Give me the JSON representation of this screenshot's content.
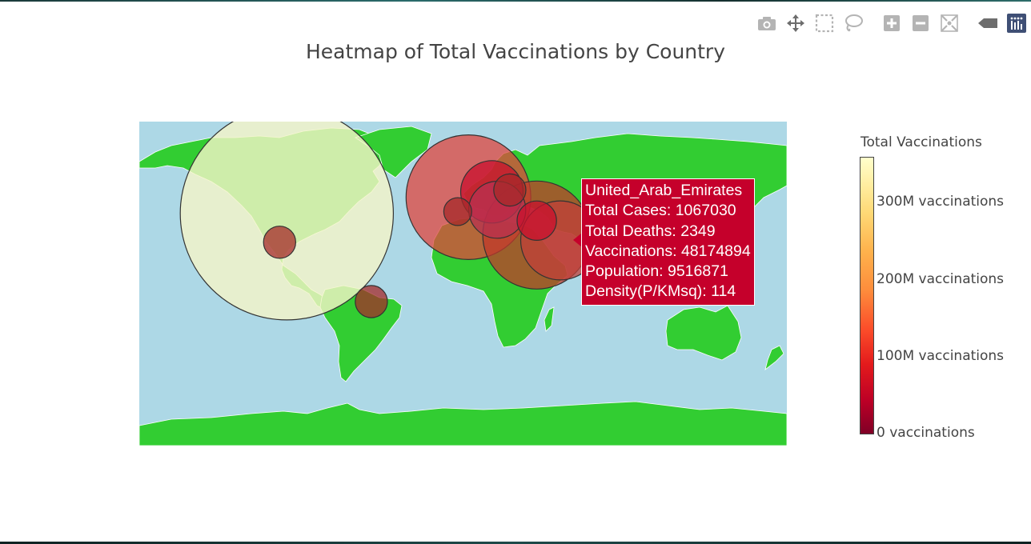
{
  "toolbar": {
    "icons": [
      "camera-icon",
      "pan-icon",
      "box-select-icon",
      "lasso-icon",
      "zoom-in-icon",
      "zoom-out-icon",
      "reset-icon",
      "hover-icon",
      "plotly-logo-icon"
    ]
  },
  "chart_data": {
    "type": "scatter",
    "subtype": "scatter_geo_bubble",
    "title": "Heatmap of Total Vaccinations by Country",
    "projection": "equirectangular",
    "land_color": "#32cd32",
    "ocean_color": "#add8e6",
    "colorbar": {
      "title": "Total Vaccinations",
      "range": [
        0,
        360000000
      ],
      "colorscale": [
        "#800026",
        "#bd0026",
        "#e31a1c",
        "#fc4e2a",
        "#fd8d3c",
        "#feb24c",
        "#fed976",
        "#ffeda0",
        "#ffffcc"
      ],
      "ticks": [
        {
          "value": 0,
          "label": "0 vaccinations"
        },
        {
          "value": 100000000,
          "label": "100M vaccinations"
        },
        {
          "value": 200000000,
          "label": "200M vaccinations"
        },
        {
          "value": 300000000,
          "label": "300M vaccinations"
        }
      ]
    },
    "points": [
      {
        "lon": -98,
        "lat": 39,
        "vaccinations": 350000000,
        "color": "#f5f5c8"
      },
      {
        "lon": -102,
        "lat": 23,
        "vaccinations": 8000000,
        "color": "#a52a2a"
      },
      {
        "lon": -51,
        "lat": -10,
        "vaccinations": 8000000,
        "color": "#a52a2a"
      },
      {
        "lon": -3,
        "lat": 40,
        "vaccinations": 6000000,
        "color": "#a52a2a"
      },
      {
        "lon": 3,
        "lat": 48,
        "vaccinations": 120000000,
        "color": "#e0463e"
      },
      {
        "lon": 16,
        "lat": 51,
        "vaccinations": 30000000,
        "color": "#c8102e"
      },
      {
        "lon": 26,
        "lat": 52,
        "vaccinations": 8000000,
        "color": "#a52a2a"
      },
      {
        "lon": 19,
        "lat": 41,
        "vaccinations": 25000000,
        "color": "#b83250"
      },
      {
        "lon": 41,
        "lat": 35,
        "vaccinations": 12000000,
        "color": "#c8102e"
      },
      {
        "lon": 41,
        "lat": 27,
        "vaccinations": 90000000,
        "color": "#c0392b"
      },
      {
        "lon": 54,
        "lat": 24,
        "vaccinations": 48174894,
        "color": "#c0403a"
      }
    ],
    "hover": {
      "country": "United_Arab_Emirates",
      "lines": [
        "United_Arab_Emirates",
        "Total Cases: 1067030",
        "Total Deaths: 2349",
        "Vaccinations: 48174894",
        "Population: 9516871",
        "Density(P/KMsq): 114"
      ]
    }
  }
}
